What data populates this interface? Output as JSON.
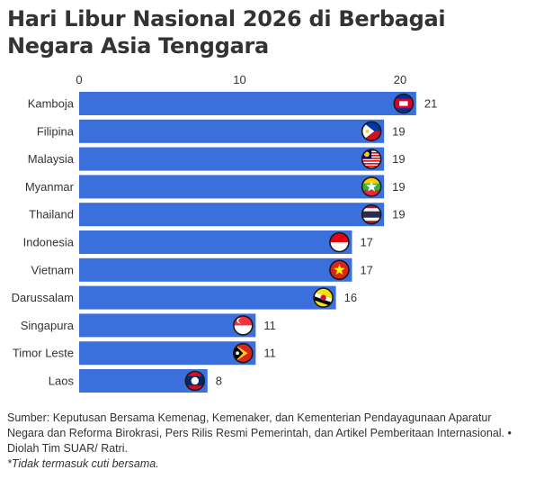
{
  "title": "Hari Libur Nasional 2026 di Berbagai Negara Asia Tenggara",
  "source_note": "Sumber: Keputusan Bersama Kemenag, Kemenaker, dan Kementerian Pendayagunaan Aparatur Negara dan Reforma Birokrasi, Pers Rilis Resmi Pemerintah, dan Artikel Pemberitaan Internasional. • Diolah Tim SUAR/ Ratri.",
  "footnote": "*Tidak termasuk cuti bersama.",
  "chart_data": {
    "type": "bar",
    "orientation": "horizontal",
    "title": "Hari Libur Nasional 2026 di Berbagai Negara Asia Tenggara",
    "xlim": [
      0,
      20
    ],
    "ticks": [
      0,
      10,
      20
    ],
    "bar_color": "#3a6fdc",
    "axis_position": "top",
    "categories": [
      "Kamboja",
      "Filipina",
      "Malaysia",
      "Myanmar",
      "Thailand",
      "Indonesia",
      "Vietnam",
      "Darussalam",
      "Singapura",
      "Timor Leste",
      "Laos"
    ],
    "values": [
      21,
      19,
      19,
      19,
      19,
      17,
      17,
      16,
      11,
      11,
      8
    ],
    "flags": [
      "cambodia-flag-icon",
      "philippines-flag-icon",
      "malaysia-flag-icon",
      "myanmar-flag-icon",
      "thailand-flag-icon",
      "indonesia-flag-icon",
      "vietnam-flag-icon",
      "brunei-flag-icon",
      "singapore-flag-icon",
      "timor-leste-flag-icon",
      "laos-flag-icon"
    ]
  }
}
